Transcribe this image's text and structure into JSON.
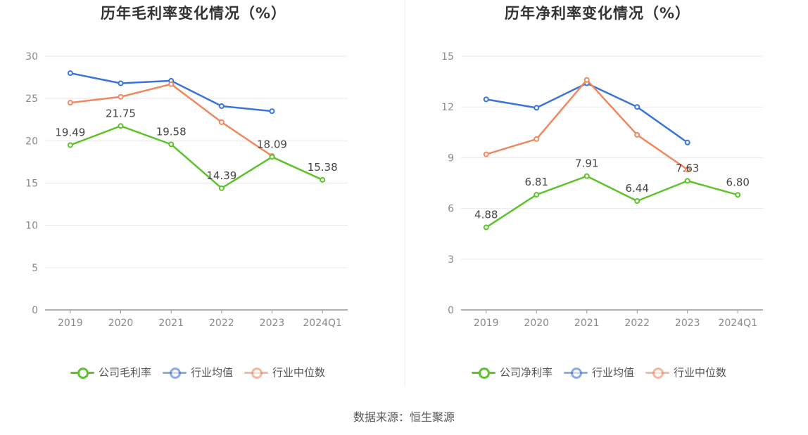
{
  "source_label": "数据来源：恒生聚源",
  "colors": {
    "company": "#5ec32b",
    "avg": "#3b74d9",
    "median": "#f0885e",
    "grid": "#e6e8f0",
    "axis": "#999999"
  },
  "chart_data": [
    {
      "type": "line",
      "title": "历年毛利率变化情况（%）",
      "categories": [
        "2019",
        "2020",
        "2021",
        "2022",
        "2023",
        "2024Q1"
      ],
      "ylim": [
        0,
        30
      ],
      "yticks": [
        "0",
        "5",
        "10",
        "15",
        "20",
        "25",
        "30"
      ],
      "grid": true,
      "legend_position": "bottom",
      "series": [
        {
          "name": "公司毛利率",
          "key": "company",
          "values": [
            19.49,
            21.75,
            19.58,
            14.39,
            18.09,
            15.38
          ],
          "labels": [
            "19.49",
            "21.75",
            "19.58",
            "14.39",
            "18.09",
            "15.38"
          ]
        },
        {
          "name": "行业均值",
          "key": "avg",
          "values": [
            28.0,
            26.8,
            27.1,
            24.1,
            23.5,
            null
          ]
        },
        {
          "name": "行业中位数",
          "key": "median",
          "values": [
            24.5,
            25.2,
            26.7,
            22.2,
            18.2,
            null
          ]
        }
      ]
    },
    {
      "type": "line",
      "title": "历年净利率变化情况（%）",
      "categories": [
        "2019",
        "2020",
        "2021",
        "2022",
        "2023",
        "2024Q1"
      ],
      "ylim": [
        0,
        15
      ],
      "yticks": [
        "0",
        "3",
        "6",
        "9",
        "12",
        "15"
      ],
      "grid": true,
      "legend_position": "bottom",
      "series": [
        {
          "name": "公司净利率",
          "key": "company",
          "values": [
            4.88,
            6.81,
            7.91,
            6.44,
            7.63,
            6.8
          ],
          "labels": [
            "4.88",
            "6.81",
            "7.91",
            "6.44",
            "7.63",
            "6.80"
          ]
        },
        {
          "name": "行业均值",
          "key": "avg",
          "values": [
            12.45,
            11.95,
            13.4,
            12.0,
            9.9,
            null
          ]
        },
        {
          "name": "行业中位数",
          "key": "median",
          "values": [
            9.2,
            10.1,
            13.6,
            10.35,
            8.3,
            null
          ]
        }
      ]
    }
  ]
}
